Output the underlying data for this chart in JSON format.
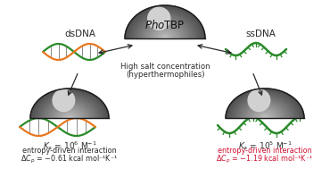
{
  "phot_label": "$\\mathit{Pho}$TBP",
  "center_label1": "High salt concentration",
  "center_label2": "(hyperthermophiles)",
  "left_label": "dsDNA",
  "right_label": "ssDNA",
  "left_ka": "$\\mathit{K}$$_\\mathrm{a}$ = 10$^6$ M$^{-1}$",
  "left_line2": "entropy-driven interaction",
  "left_line3": "$\\Delta$$\\mathit{C}$$_p$ = −0.61 kcal mol⁻¹K⁻¹",
  "right_ka": "$\\mathit{K}$$_\\mathrm{a}$ = 10$^5$ M$^{-1}$",
  "right_line2": "entropy-driven interaction",
  "right_line3": "$\\Delta$$\\mathit{C}$$_p$ = −1.19 kcal mol⁻¹K⁻¹",
  "text_color_black": "#2a2a2a",
  "text_color_red": "#d01030",
  "background": "#ffffff",
  "arrow_color": "#2a2a2a",
  "dna_green": "#2a8a2a",
  "dna_orange": "#e87820"
}
